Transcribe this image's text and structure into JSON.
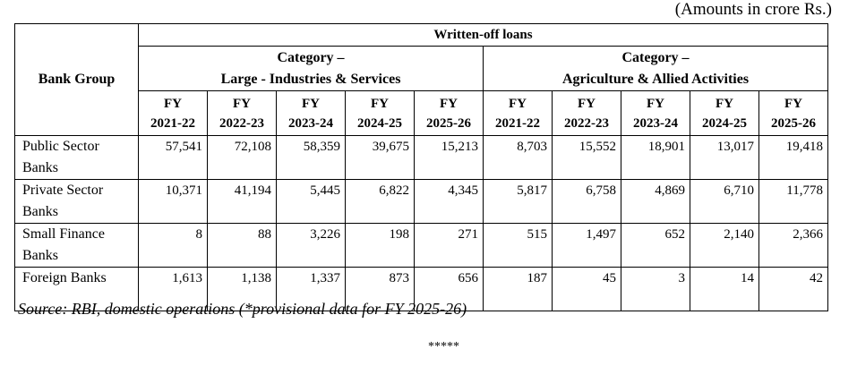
{
  "units_note": "(Amounts in crore Rs.)",
  "table": {
    "bank_group_header": "Bank Group",
    "written_off_header": "Written-off loans",
    "category1_line1": "Category –",
    "category1_line2": "Large - Industries & Services",
    "category2_line1": "Category –",
    "category2_line2": "Agriculture & Allied Activities",
    "fy_label": "FY",
    "years": [
      "2021-22",
      "2022-23",
      "2023-24",
      "2024-25",
      "2025-26"
    ],
    "rows": [
      {
        "line1": "Public Sector",
        "line2": "Banks",
        "large": [
          "57,541",
          "72,108",
          "58,359",
          "39,675",
          "15,213"
        ],
        "agri": [
          "8,703",
          "15,552",
          "18,901",
          "13,017",
          "19,418"
        ]
      },
      {
        "line1": "Private Sector",
        "line2": "Banks",
        "large": [
          "10,371",
          "41,194",
          "5,445",
          "6,822",
          "4,345"
        ],
        "agri": [
          "5,817",
          "6,758",
          "4,869",
          "6,710",
          "11,778"
        ]
      },
      {
        "line1": "Small Finance",
        "line2": "Banks",
        "large": [
          "8",
          "88",
          "3,226",
          "198",
          "271"
        ],
        "agri": [
          "515",
          "1,497",
          "652",
          "2,140",
          "2,366"
        ]
      },
      {
        "line1": "Foreign Banks",
        "line2": "",
        "large": [
          "1,613",
          "1,138",
          "1,337",
          "873",
          "656"
        ],
        "agri": [
          "187",
          "45",
          "3",
          "14",
          "42"
        ]
      }
    ]
  },
  "source": "Source: RBI, domestic operations (*provisional data for FY 2025-26)",
  "separator": "*****"
}
